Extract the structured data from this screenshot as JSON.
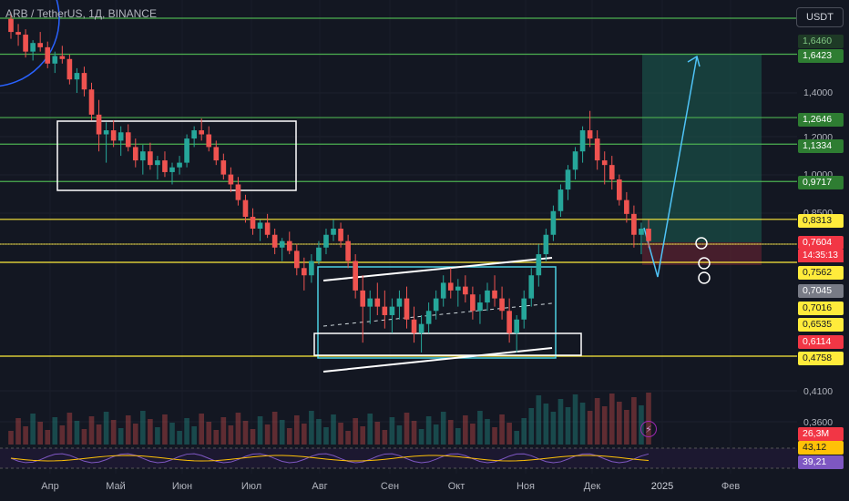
{
  "header": {
    "symbol": "ARB / TetherUS, 1Д, BINANCE"
  },
  "toolbar": {
    "currency": "USDT"
  },
  "icons": {
    "alert": "lightning-icon"
  },
  "colors": {
    "background": "#131722",
    "up": "#26a69a",
    "down": "#ef5350",
    "green_level": "#4caf50",
    "yellow_level": "#ffeb3b",
    "rsi": "#7e57c2",
    "rsi_ma": "#ffc107",
    "target_zone": "#1b5e52",
    "stop_zone": "#5c2230",
    "arrow": "#4fc3f7"
  },
  "chart_data": {
    "type": "candlestick",
    "symbol": "ARB / TetherUS",
    "interval": "1Д",
    "exchange": "BINANCE",
    "time_axis": [
      "Апр",
      "Май",
      "Июн",
      "Июл",
      "Авг",
      "Сен",
      "Окт",
      "Ноя",
      "Дек",
      "2025",
      "Фев"
    ],
    "price_axis": [
      "1,4000",
      "1,2000",
      "1,0000",
      "0,8500",
      "0,4100",
      "0,3600"
    ],
    "levels": [
      {
        "price": 1.646,
        "label": "1,6460",
        "color": "green"
      },
      {
        "price": 1.6423,
        "label": "1,6423",
        "color": "green"
      },
      {
        "price": 1.2646,
        "label": "1,2646",
        "color": "green"
      },
      {
        "price": 1.1334,
        "label": "1,1334",
        "color": "green"
      },
      {
        "price": 0.9717,
        "label": "0,9717",
        "color": "green"
      },
      {
        "price": 0.8313,
        "label": "0,8313",
        "color": "yellow"
      },
      {
        "price": 0.7562,
        "label": "0,7562",
        "color": "yellow"
      },
      {
        "price": 0.7016,
        "label": "0,7016",
        "color": "yellow"
      },
      {
        "price": 0.6535,
        "label": "0,6535",
        "color": "yellow"
      },
      {
        "price": 0.4758,
        "label": "0,4758",
        "color": "yellow"
      }
    ],
    "current_price": {
      "value": 0.7604,
      "label": "0,7604",
      "countdown": "14:35:13"
    },
    "marker_prices": [
      {
        "value": 0.7045,
        "label": "0,7045"
      },
      {
        "value": 0.6114,
        "label": "0,6114"
      }
    ],
    "volume": {
      "label": "26,3M"
    },
    "rsi": {
      "value": "39,21",
      "ma": "43,12"
    },
    "candles": [
      [
        1.9,
        1.95,
        1.75,
        1.8
      ],
      [
        1.8,
        1.86,
        1.7,
        1.78
      ],
      [
        1.78,
        1.82,
        1.62,
        1.66
      ],
      [
        1.66,
        1.74,
        1.6,
        1.72
      ],
      [
        1.72,
        1.8,
        1.66,
        1.69
      ],
      [
        1.69,
        1.73,
        1.55,
        1.58
      ],
      [
        1.58,
        1.66,
        1.52,
        1.63
      ],
      [
        1.63,
        1.7,
        1.58,
        1.61
      ],
      [
        1.61,
        1.64,
        1.45,
        1.48
      ],
      [
        1.48,
        1.55,
        1.4,
        1.52
      ],
      [
        1.52,
        1.56,
        1.38,
        1.42
      ],
      [
        1.42,
        1.46,
        1.25,
        1.28
      ],
      [
        1.28,
        1.36,
        1.1,
        1.18
      ],
      [
        1.18,
        1.24,
        1.05,
        1.2
      ],
      [
        1.2,
        1.25,
        1.12,
        1.15
      ],
      [
        1.15,
        1.22,
        1.08,
        1.19
      ],
      [
        1.19,
        1.23,
        1.1,
        1.12
      ],
      [
        1.12,
        1.16,
        1.03,
        1.06
      ],
      [
        1.06,
        1.13,
        1.0,
        1.1
      ],
      [
        1.1,
        1.14,
        1.02,
        1.04
      ],
      [
        1.04,
        1.08,
        0.98,
        1.06
      ],
      [
        1.06,
        1.1,
        0.99,
        1.01
      ],
      [
        1.01,
        1.05,
        0.96,
        1.03
      ],
      [
        1.03,
        1.08,
        1.0,
        1.05
      ],
      [
        1.05,
        1.18,
        1.03,
        1.16
      ],
      [
        1.16,
        1.22,
        1.12,
        1.2
      ],
      [
        1.2,
        1.26,
        1.15,
        1.18
      ],
      [
        1.18,
        1.22,
        1.1,
        1.12
      ],
      [
        1.12,
        1.15,
        1.04,
        1.06
      ],
      [
        1.06,
        1.09,
        0.98,
        1.0
      ],
      [
        1.0,
        1.03,
        0.93,
        0.96
      ],
      [
        0.96,
        0.99,
        0.88,
        0.9
      ],
      [
        0.9,
        0.92,
        0.82,
        0.84
      ],
      [
        0.84,
        0.87,
        0.78,
        0.8
      ],
      [
        0.8,
        0.83,
        0.76,
        0.82
      ],
      [
        0.82,
        0.85,
        0.77,
        0.78
      ],
      [
        0.78,
        0.8,
        0.72,
        0.74
      ],
      [
        0.74,
        0.77,
        0.7,
        0.76
      ],
      [
        0.76,
        0.79,
        0.72,
        0.73
      ],
      [
        0.73,
        0.75,
        0.66,
        0.68
      ],
      [
        0.68,
        0.71,
        0.62,
        0.66
      ],
      [
        0.66,
        0.72,
        0.64,
        0.7
      ],
      [
        0.7,
        0.76,
        0.69,
        0.74
      ],
      [
        0.74,
        0.8,
        0.72,
        0.78
      ],
      [
        0.78,
        0.83,
        0.76,
        0.8
      ],
      [
        0.8,
        0.82,
        0.74,
        0.76
      ],
      [
        0.76,
        0.78,
        0.68,
        0.7
      ],
      [
        0.7,
        0.72,
        0.6,
        0.62
      ],
      [
        0.62,
        0.66,
        0.5,
        0.58
      ],
      [
        0.58,
        0.62,
        0.54,
        0.6
      ],
      [
        0.6,
        0.64,
        0.56,
        0.58
      ],
      [
        0.58,
        0.62,
        0.53,
        0.56
      ],
      [
        0.56,
        0.6,
        0.52,
        0.58
      ],
      [
        0.58,
        0.62,
        0.55,
        0.6
      ],
      [
        0.6,
        0.63,
        0.53,
        0.55
      ],
      [
        0.55,
        0.58,
        0.5,
        0.52
      ],
      [
        0.52,
        0.56,
        0.48,
        0.54
      ],
      [
        0.54,
        0.59,
        0.52,
        0.57
      ],
      [
        0.57,
        0.62,
        0.55,
        0.6
      ],
      [
        0.6,
        0.66,
        0.58,
        0.64
      ],
      [
        0.64,
        0.68,
        0.6,
        0.62
      ],
      [
        0.62,
        0.65,
        0.58,
        0.63
      ],
      [
        0.63,
        0.66,
        0.59,
        0.61
      ],
      [
        0.61,
        0.63,
        0.55,
        0.57
      ],
      [
        0.57,
        0.61,
        0.54,
        0.59
      ],
      [
        0.59,
        0.64,
        0.57,
        0.62
      ],
      [
        0.62,
        0.66,
        0.58,
        0.6
      ],
      [
        0.6,
        0.63,
        0.55,
        0.57
      ],
      [
        0.57,
        0.6,
        0.5,
        0.52
      ],
      [
        0.52,
        0.56,
        0.48,
        0.55
      ],
      [
        0.55,
        0.62,
        0.53,
        0.6
      ],
      [
        0.6,
        0.68,
        0.58,
        0.66
      ],
      [
        0.66,
        0.75,
        0.63,
        0.72
      ],
      [
        0.72,
        0.8,
        0.7,
        0.78
      ],
      [
        0.78,
        0.88,
        0.76,
        0.86
      ],
      [
        0.86,
        0.96,
        0.84,
        0.94
      ],
      [
        0.94,
        1.04,
        0.9,
        1.02
      ],
      [
        1.02,
        1.12,
        0.98,
        1.1
      ],
      [
        1.1,
        1.22,
        1.05,
        1.2
      ],
      [
        1.2,
        1.3,
        1.12,
        1.16
      ],
      [
        1.16,
        1.2,
        1.02,
        1.06
      ],
      [
        1.06,
        1.1,
        0.96,
        1.04
      ],
      [
        1.04,
        1.08,
        0.94,
        0.98
      ],
      [
        0.98,
        1.0,
        0.88,
        0.9
      ],
      [
        0.9,
        0.93,
        0.82,
        0.85
      ],
      [
        0.85,
        0.88,
        0.74,
        0.78
      ],
      [
        0.78,
        0.82,
        0.72,
        0.8
      ],
      [
        0.8,
        0.83,
        0.74,
        0.76
      ]
    ]
  }
}
